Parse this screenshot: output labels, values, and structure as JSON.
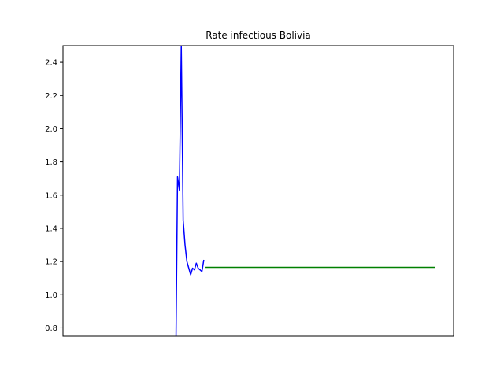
{
  "chart_data": {
    "type": "line",
    "title": "Rate infectious Bolivia",
    "xlabel": "",
    "ylabel": "",
    "ylim": [
      0.75,
      2.5
    ],
    "y_ticks": [
      "0.8",
      "1.0",
      "1.2",
      "1.4",
      "1.6",
      "1.8",
      "2.0",
      "2.2",
      "2.4"
    ],
    "x_ticks_shown": false,
    "grid": false,
    "series": [
      {
        "color": "#0000ff",
        "points": [
          [
            0.0,
            0.5
          ],
          [
            1.0,
            1.71
          ],
          [
            2.0,
            1.63
          ],
          [
            3.0,
            2.5
          ],
          [
            4.0,
            1.45
          ],
          [
            5.0,
            1.3
          ],
          [
            6.0,
            1.2
          ],
          [
            7.0,
            1.16
          ],
          [
            8.0,
            1.12
          ],
          [
            9.0,
            1.16
          ],
          [
            10.0,
            1.15
          ],
          [
            11.0,
            1.19
          ],
          [
            12.0,
            1.16
          ],
          [
            13.0,
            1.15
          ],
          [
            14.0,
            1.14
          ],
          [
            15.0,
            1.21
          ]
        ]
      },
      {
        "color": "#008000",
        "points": [
          [
            15.5,
            1.165
          ],
          [
            138.0,
            1.165
          ]
        ]
      }
    ],
    "x_range": [
      -60,
      148
    ]
  }
}
